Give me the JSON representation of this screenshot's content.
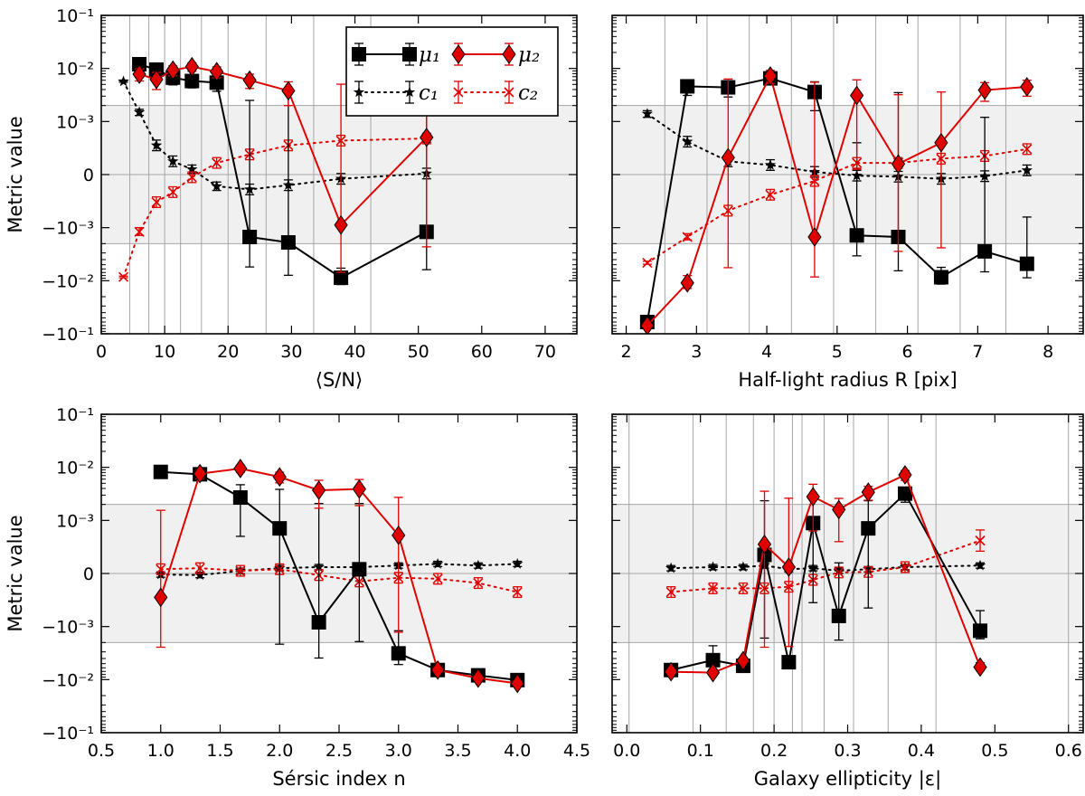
{
  "figure": {
    "y_label": "Metric value",
    "y_ticks": [
      "10⁻¹",
      "10⁻²",
      "10⁻³",
      "0",
      "−10⁻³",
      "−10⁻²",
      "−10⁻¹"
    ],
    "legend": [
      {
        "key": "mu1",
        "label": "μ₁",
        "color": "#000000",
        "marker": "square",
        "linestyle": "solid"
      },
      {
        "key": "mu2",
        "label": "μ₂",
        "color": "#e00000",
        "marker": "diamond",
        "linestyle": "solid"
      },
      {
        "key": "c1",
        "label": "c₁",
        "color": "#000000",
        "marker": "star",
        "linestyle": "dotted"
      },
      {
        "key": "c2",
        "label": "c₂",
        "color": "#e00000",
        "marker": "x",
        "linestyle": "dotted"
      }
    ],
    "colors": {
      "black": "#000000",
      "red": "#e00000",
      "band": "#f0f0f0",
      "gridline": "#a6a6a6"
    }
  },
  "chart_data": [
    {
      "id": "sn",
      "type": "line",
      "xlabel": "⟨S/N⟩",
      "ylabel": "Metric value",
      "xlim": [
        0,
        75
      ],
      "xticks": [
        0,
        10,
        20,
        30,
        40,
        50,
        60,
        70
      ],
      "yscale": "symlog",
      "ylim": [
        -0.1,
        0.1
      ],
      "requirement_band": [
        -0.002,
        0.002
      ],
      "bin_edges": [
        4.5,
        7.5,
        10,
        12.5,
        15.8,
        20,
        26,
        33.5,
        42.5
      ],
      "series": {
        "mu1": {
          "x": [
            6,
            8.7,
            11.3,
            14.3,
            18.2,
            23.4,
            29.5,
            37.8,
            51.3
          ],
          "y": [
            0.012,
            0.0095,
            0.0067,
            0.0058,
            0.0054,
            -0.0015,
            -0.0019,
            -0.0088,
            -0.0012
          ],
          "err": [
            0.001,
            0.0015,
            0.0018,
            0.0015,
            0.0017,
            0.004,
            0.006,
            0.003,
            0.005
          ]
        },
        "mu2": {
          "x": [
            6,
            8.7,
            11.3,
            14.3,
            18.2,
            23.4,
            29.5,
            37.8,
            51.3
          ],
          "y": [
            0.0078,
            0.0062,
            0.0093,
            0.0108,
            0.0087,
            0.006,
            0.0038,
            -0.00095,
            0.0007
          ],
          "err": [
            0.002,
            0.0022,
            0.002,
            0.002,
            0.002,
            0.0018,
            0.0018,
            0.006,
            0.003
          ]
        },
        "c1": {
          "x": [
            3.5,
            6,
            8.7,
            11.3,
            14.3,
            18.2,
            23.4,
            29.5,
            37.8,
            51.3
          ],
          "y": [
            0.0057,
            0.0015,
            0.00055,
            0.00025,
            0.0001,
            -0.00022,
            -0.00028,
            -0.0002,
            -8e-05,
            2e-05
          ],
          "err": [
            0.0002,
            0.0002,
            0.0001,
            0.0001,
            8e-05,
            8e-05,
            0.0001,
            0.0001,
            0.0001,
            0.0001
          ]
        },
        "c2": {
          "x": [
            3.5,
            6,
            8.7,
            11.3,
            14.3,
            18.2,
            23.4,
            29.5,
            37.8,
            51.3
          ],
          "y": [
            -0.0085,
            -0.0012,
            -0.00052,
            -0.00033,
            -5e-05,
            0.00022,
            0.00038,
            0.00055,
            0.00064,
            0.00068
          ],
          "err": [
            0.0003,
            0.0002,
            0.0001,
            0.0001,
            0.0001,
            0.0001,
            0.0001,
            0.0001,
            0.0001,
            0.0001
          ]
        }
      }
    },
    {
      "id": "radius",
      "type": "line",
      "xlabel": "Half-light radius R [pix]",
      "ylabel": "",
      "xlim": [
        1.8,
        8.5
      ],
      "xticks": [
        2,
        3,
        4,
        5,
        6,
        7,
        8
      ],
      "yscale": "symlog",
      "ylim": [
        -0.1,
        0.1
      ],
      "requirement_band": [
        -0.002,
        0.002
      ],
      "bin_edges": [
        2.55,
        3.15,
        3.75,
        4.35,
        4.95,
        5.55,
        6.15,
        6.75,
        7.4
      ],
      "series": {
        "mu1": {
          "x": [
            2.3,
            2.87,
            3.45,
            4.05,
            4.68,
            5.28,
            5.87,
            6.48,
            7.1,
            7.7
          ],
          "y": [
            -0.06,
            0.0046,
            0.0044,
            0.0065,
            0.0036,
            -0.0014,
            -0.0015,
            -0.0086,
            -0.0028,
            -0.0048
          ],
          "err": [
            0.005,
            0.0015,
            0.0015,
            0.0015,
            0.002,
            0.002,
            0.005,
            0.003,
            0.004,
            0.004
          ]
        },
        "mu2": {
          "x": [
            2.3,
            2.87,
            3.45,
            4.05,
            4.68,
            5.28,
            5.87,
            6.48,
            7.1,
            7.7
          ],
          "y": [
            -0.07,
            -0.011,
            0.00032,
            0.0072,
            -0.0015,
            0.0031,
            0.0002,
            0.0006,
            0.0039,
            0.0045
          ],
          "err": [
            0.005,
            0.003,
            0.006,
            0.002,
            0.007,
            0.003,
            0.003,
            0.003,
            0.0015,
            0.0015
          ]
        },
        "c1": {
          "x": [
            2.3,
            2.87,
            3.45,
            4.05,
            4.68,
            5.28,
            5.87,
            6.48,
            7.1,
            7.7
          ],
          "y": [
            0.0014,
            0.00062,
            0.00025,
            0.00018,
            5e-05,
            -2e-05,
            -4e-05,
            -8e-05,
            -3e-05,
            8e-05
          ],
          "err": [
            0.0002,
            0.0001,
            0.0001,
            0.0001,
            0.0001,
            0.0001,
            0.0001,
            0.0001,
            0.0001,
            0.0001
          ]
        },
        "c2": {
          "x": [
            2.3,
            2.87,
            3.45,
            4.05,
            4.68,
            5.28,
            5.87,
            6.48,
            7.1,
            7.7
          ],
          "y": [
            -0.0046,
            -0.0015,
            -0.00068,
            -0.00038,
            -0.00012,
            0.00022,
            0.00022,
            0.0003,
            0.00035,
            0.00048
          ],
          "err": [
            0.0003,
            0.0002,
            0.0001,
            0.0001,
            0.0001,
            0.0001,
            0.0001,
            0.0001,
            0.0001,
            0.0001
          ]
        }
      }
    },
    {
      "id": "sersic",
      "type": "line",
      "xlabel": "Sérsic index n",
      "ylabel": "Metric value",
      "xlim": [
        0.5,
        4.5
      ],
      "xticks": [
        0.5,
        1.0,
        1.5,
        2.0,
        2.5,
        3.0,
        3.5,
        4.0,
        4.5
      ],
      "xtick_format": "fixed1",
      "yscale": "symlog",
      "ylim": [
        -0.1,
        0.1
      ],
      "requirement_band": [
        -0.002,
        0.002
      ],
      "bin_edges": [],
      "series": {
        "mu1": {
          "x": [
            1.0,
            1.33,
            1.67,
            2.0,
            2.33,
            2.67,
            3.0,
            3.33,
            3.67,
            4.0
          ],
          "y": [
            0.0082,
            0.0074,
            0.0027,
            0.00085,
            -0.00092,
            8e-05,
            -0.0032,
            -0.0066,
            -0.0083,
            -0.0102
          ],
          "err": [
            0.0005,
            0.001,
            0.002,
            0.003,
            0.003,
            0.002,
            0.002,
            0.001,
            0.001,
            0.0005
          ]
        },
        "mu2": {
          "x": [
            1.0,
            1.33,
            1.67,
            2.0,
            2.33,
            2.67,
            3.0,
            3.33,
            3.67,
            4.0
          ],
          "y": [
            -0.00045,
            0.0076,
            0.0095,
            0.0066,
            0.0037,
            0.0039,
            0.00072,
            -0.0066,
            -0.0094,
            -0.0118
          ],
          "err": [
            0.002,
            0.0015,
            0.0015,
            0.0015,
            0.002,
            0.002,
            0.002,
            0.001,
            0.001,
            0.0008
          ]
        },
        "c1": {
          "x": [
            1.0,
            1.33,
            1.67,
            2.0,
            2.33,
            2.67,
            3.0,
            3.33,
            3.67,
            4.0
          ],
          "y": [
            -2e-05,
            -3e-05,
            5e-05,
            0.0001,
            0.00012,
            0.00012,
            0.00015,
            0.00018,
            0.00015,
            0.00018
          ],
          "err": [
            5e-05,
            5e-05,
            5e-05,
            5e-05,
            5e-05,
            5e-05,
            5e-05,
            5e-05,
            5e-05,
            5e-05
          ]
        },
        "c2": {
          "x": [
            1.0,
            1.33,
            1.67,
            2.0,
            2.33,
            2.67,
            3.0,
            3.33,
            3.67,
            4.0
          ],
          "y": [
            8e-05,
            0.0001,
            5e-05,
            8e-05,
            -3e-05,
            -0.00015,
            -8e-05,
            -0.0001,
            -0.00018,
            -0.00035
          ],
          "err": [
            0.0001,
            0.0001,
            0.0001,
            0.0001,
            0.0001,
            0.0001,
            0.0001,
            0.0001,
            0.0001,
            0.0001
          ]
        }
      }
    },
    {
      "id": "ellipticity",
      "type": "line",
      "xlabel": "Galaxy ellipticity |ε|",
      "ylabel": "",
      "xlim": [
        -0.02,
        0.62
      ],
      "xticks": [
        0.0,
        0.1,
        0.2,
        0.3,
        0.4,
        0.5,
        0.6
      ],
      "xtick_format": "fixed1",
      "yscale": "symlog",
      "ylim": [
        -0.1,
        0.1
      ],
      "requirement_band": [
        -0.002,
        0.002
      ],
      "bin_edges": [
        0.003,
        0.09,
        0.135,
        0.172,
        0.2,
        0.225,
        0.238,
        0.268,
        0.308,
        0.355,
        0.42,
        0.6
      ],
      "series": {
        "mu1": {
          "x": [
            0.06,
            0.117,
            0.158,
            0.187,
            0.22,
            0.253,
            0.288,
            0.328,
            0.378,
            0.48
          ],
          "y": [
            -0.0066,
            -0.0043,
            -0.0055,
            0.00035,
            -0.0047,
            0.00095,
            -0.0008,
            0.00085,
            0.0032,
            -0.0012
          ],
          "err": [
            0.0005,
            0.002,
            0.0008,
            0.002,
            0.0008,
            0.0015,
            0.001,
            0.0015,
            0.001,
            0.0005
          ]
        },
        "mu2": {
          "x": [
            0.06,
            0.117,
            0.158,
            0.187,
            0.22,
            0.253,
            0.288,
            0.328,
            0.378,
            0.48
          ],
          "y": [
            -0.0071,
            -0.0074,
            -0.0044,
            0.00055,
            0.00012,
            0.0028,
            0.0016,
            0.0034,
            0.0072,
            -0.0058
          ],
          "err": [
            0.0005,
            0.0004,
            0.0004,
            0.003,
            0.0025,
            0.002,
            0.001,
            0.001,
            0.0015,
            0.001
          ]
        },
        "c1": {
          "x": [
            0.06,
            0.117,
            0.158,
            0.187,
            0.22,
            0.253,
            0.288,
            0.328,
            0.378,
            0.48
          ],
          "y": [
            0.0001,
            0.00012,
            0.00012,
            0.00015,
            8e-05,
            0.0001,
            5e-05,
            8e-05,
            0.00012,
            0.00015
          ],
          "err": [
            5e-05,
            5e-05,
            5e-05,
            5e-05,
            5e-05,
            5e-05,
            5e-05,
            5e-05,
            5e-05,
            5e-05
          ]
        },
        "c2": {
          "x": [
            0.06,
            0.117,
            0.158,
            0.187,
            0.22,
            0.253,
            0.288,
            0.328,
            0.378,
            0.48
          ],
          "y": [
            -0.00035,
            -0.00028,
            -0.00028,
            -0.00028,
            -0.00025,
            -0.00012,
            2e-05,
            3e-05,
            0.00012,
            0.00062
          ],
          "err": [
            0.0001,
            0.0001,
            0.0001,
            0.0001,
            0.0001,
            0.0001,
            0.0001,
            0.0001,
            0.0001,
            0.0002
          ]
        }
      }
    }
  ]
}
